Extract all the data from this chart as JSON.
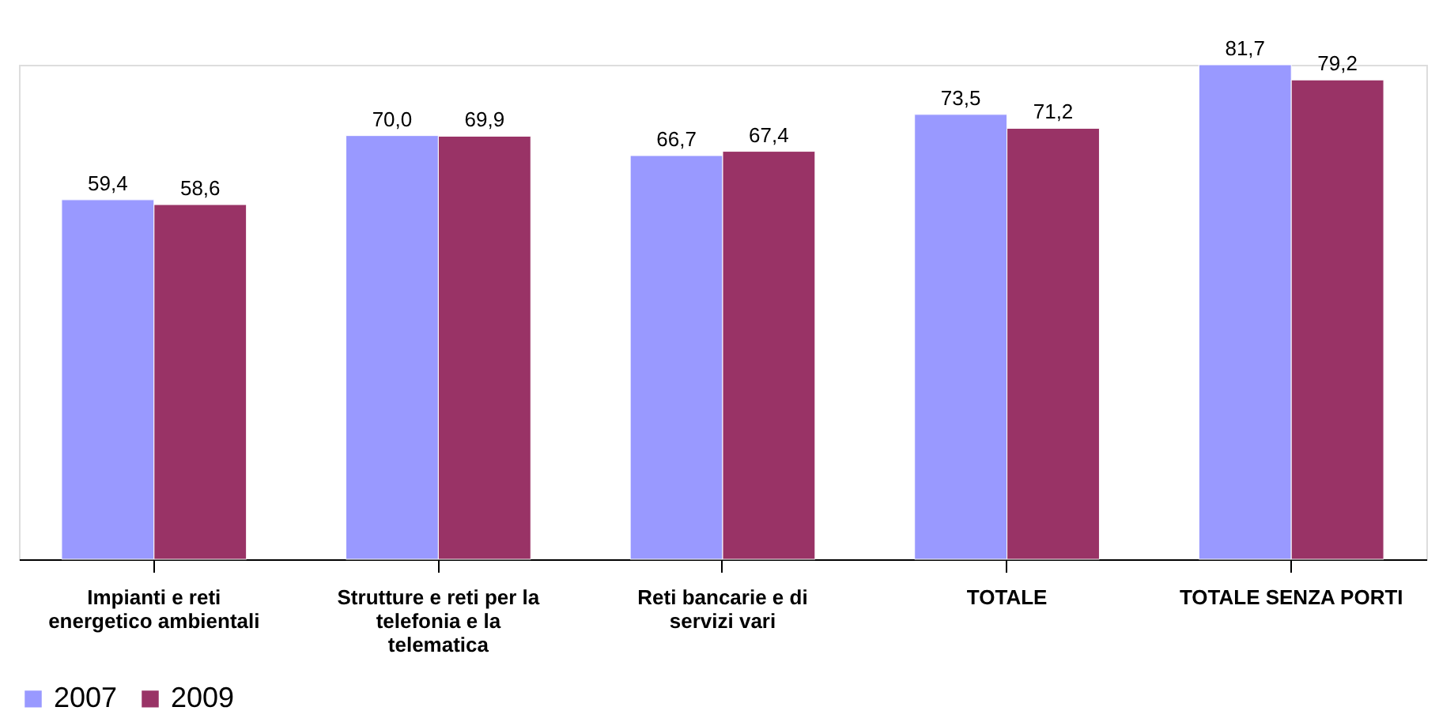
{
  "chart_data": {
    "type": "bar",
    "categories": [
      "Impianti e reti energetico ambientali",
      "Strutture e reti per la telefonia e la telematica",
      "Reti bancarie e di servizi vari",
      "TOTALE",
      "TOTALE SENZA PORTI"
    ],
    "series": [
      {
        "name": "2007",
        "color": "#9999ff",
        "values": [
          59.4,
          70.0,
          66.7,
          73.5,
          81.7
        ],
        "value_labels": [
          "59,4",
          "70,0",
          "66,7",
          "73,5",
          "81,7"
        ]
      },
      {
        "name": "2009",
        "color": "#993366",
        "values": [
          58.6,
          69.9,
          67.4,
          71.2,
          79.2
        ],
        "value_labels": [
          "58,6",
          "69,9",
          "67,4",
          "71,2",
          "79,2"
        ]
      }
    ],
    "legend": "bottom"
  }
}
